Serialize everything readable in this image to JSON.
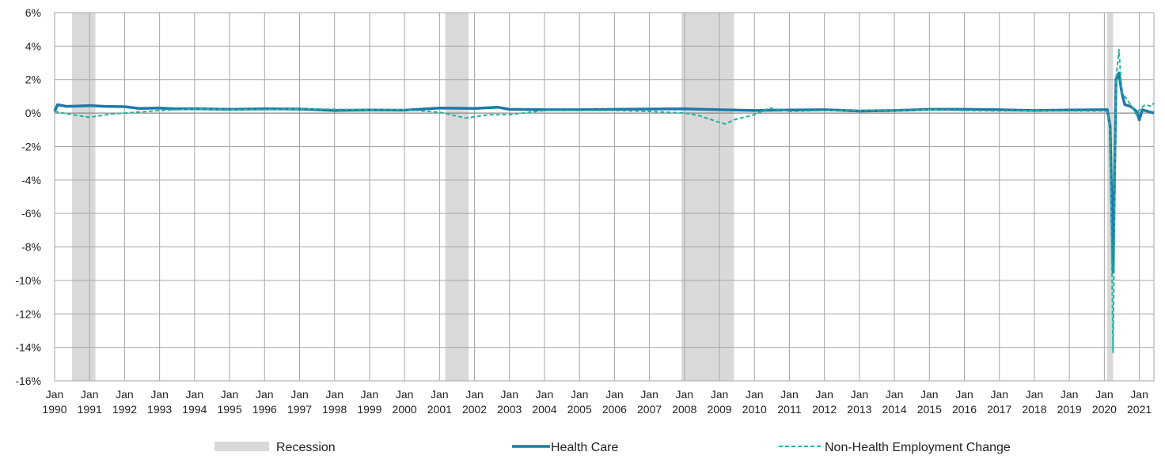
{
  "chart_data": {
    "type": "line",
    "title": "",
    "xlabel": "",
    "ylabel": "",
    "ylim": [
      -16,
      6
    ],
    "y_unit": "%",
    "y_ticks": [
      6,
      4,
      2,
      0,
      -2,
      -4,
      -6,
      -8,
      -10,
      -12,
      -14,
      -16
    ],
    "y_tick_labels": [
      "6%",
      "4%",
      "2%",
      "0%",
      "-2%",
      "-4%",
      "-6%",
      "-8%",
      "-10%",
      "-12%",
      "-14%",
      "-16%"
    ],
    "x_range": [
      "1990-01",
      "2021-06"
    ],
    "x_ticks": [
      {
        "month": "Jan",
        "year": "1990"
      },
      {
        "month": "Jan",
        "year": "1991"
      },
      {
        "month": "Jan",
        "year": "1992"
      },
      {
        "month": "Jan",
        "year": "1993"
      },
      {
        "month": "Jan",
        "year": "1994"
      },
      {
        "month": "Jan",
        "year": "1995"
      },
      {
        "month": "Jan",
        "year": "1996"
      },
      {
        "month": "Jan",
        "year": "1997"
      },
      {
        "month": "Jan",
        "year": "1998"
      },
      {
        "month": "Jan",
        "year": "1999"
      },
      {
        "month": "Jan",
        "year": "2000"
      },
      {
        "month": "Jan",
        "year": "2001"
      },
      {
        "month": "Jan",
        "year": "2002"
      },
      {
        "month": "Jan",
        "year": "2003"
      },
      {
        "month": "Jan",
        "year": "2004"
      },
      {
        "month": "Jan",
        "year": "2005"
      },
      {
        "month": "Jan",
        "year": "2006"
      },
      {
        "month": "Jan",
        "year": "2007"
      },
      {
        "month": "Jan",
        "year": "2008"
      },
      {
        "month": "Jan",
        "year": "2009"
      },
      {
        "month": "Jan",
        "year": "2010"
      },
      {
        "month": "Jan",
        "year": "2011"
      },
      {
        "month": "Jan",
        "year": "2012"
      },
      {
        "month": "Jan",
        "year": "2013"
      },
      {
        "month": "Jan",
        "year": "2014"
      },
      {
        "month": "Jan",
        "year": "2015"
      },
      {
        "month": "Jan",
        "year": "2016"
      },
      {
        "month": "Jan",
        "year": "2017"
      },
      {
        "month": "Jan",
        "year": "2018"
      },
      {
        "month": "Jan",
        "year": "2019"
      },
      {
        "month": "Jan",
        "year": "2020"
      },
      {
        "month": "Jan",
        "year": "2021"
      }
    ],
    "grid": true,
    "legend_position": "bottom",
    "recessions": [
      {
        "start": "1990-07",
        "end": "1991-03"
      },
      {
        "start": "2001-03",
        "end": "2001-11"
      },
      {
        "start": "2007-12",
        "end": "2009-06"
      },
      {
        "start": "2020-02",
        "end": "2020-04"
      }
    ],
    "legend": [
      {
        "label": "Recession",
        "kind": "band",
        "color": "#d9d9d9"
      },
      {
        "label": "Health Care",
        "kind": "line",
        "color": "#1f78a8"
      },
      {
        "label": "Non-Health Employment Change",
        "kind": "dashed",
        "color": "#23b39b"
      }
    ],
    "series": [
      {
        "name": "Health Care",
        "color": "#1f78a8",
        "style": "solid",
        "points": [
          [
            "1990-01",
            0.1
          ],
          [
            "1990-02",
            0.5
          ],
          [
            "1990-05",
            0.4
          ],
          [
            "1990-09",
            0.42
          ],
          [
            "1991-01",
            0.45
          ],
          [
            "1991-06",
            0.4
          ],
          [
            "1992-01",
            0.38
          ],
          [
            "1992-06",
            0.28
          ],
          [
            "1993-01",
            0.3
          ],
          [
            "1993-06",
            0.25
          ],
          [
            "1994-01",
            0.26
          ],
          [
            "1995-01",
            0.22
          ],
          [
            "1996-01",
            0.25
          ],
          [
            "1997-01",
            0.24
          ],
          [
            "1998-01",
            0.15
          ],
          [
            "1999-01",
            0.18
          ],
          [
            "2000-01",
            0.17
          ],
          [
            "2001-01",
            0.3
          ],
          [
            "2002-01",
            0.28
          ],
          [
            "2002-09",
            0.35
          ],
          [
            "2003-01",
            0.22
          ],
          [
            "2004-01",
            0.2
          ],
          [
            "2005-01",
            0.2
          ],
          [
            "2006-01",
            0.22
          ],
          [
            "2007-01",
            0.24
          ],
          [
            "2008-01",
            0.25
          ],
          [
            "2009-01",
            0.2
          ],
          [
            "2010-01",
            0.15
          ],
          [
            "2011-01",
            0.18
          ],
          [
            "2012-01",
            0.2
          ],
          [
            "2013-01",
            0.12
          ],
          [
            "2014-01",
            0.15
          ],
          [
            "2015-01",
            0.22
          ],
          [
            "2016-01",
            0.22
          ],
          [
            "2017-01",
            0.2
          ],
          [
            "2018-01",
            0.15
          ],
          [
            "2019-01",
            0.18
          ],
          [
            "2020-01",
            0.2
          ],
          [
            "2020-02",
            0.2
          ],
          [
            "2020-03",
            -0.8
          ],
          [
            "2020-04",
            -9.5
          ],
          [
            "2020-05",
            2.0
          ],
          [
            "2020-06",
            2.4
          ],
          [
            "2020-07",
            1.2
          ],
          [
            "2020-08",
            0.5
          ],
          [
            "2020-10",
            0.4
          ],
          [
            "2020-12",
            0.1
          ],
          [
            "2021-01",
            -0.4
          ],
          [
            "2021-02",
            0.2
          ],
          [
            "2021-04",
            0.1
          ],
          [
            "2021-06",
            0.0
          ]
        ]
      },
      {
        "name": "Non-Health Employment Change",
        "color": "#23b39b",
        "style": "dashed",
        "points": [
          [
            "1990-01",
            0.1
          ],
          [
            "1990-07",
            -0.1
          ],
          [
            "1991-01",
            -0.25
          ],
          [
            "1991-03",
            -0.2
          ],
          [
            "1991-09",
            -0.05
          ],
          [
            "1992-01",
            0.0
          ],
          [
            "1993-01",
            0.15
          ],
          [
            "1994-01",
            0.25
          ],
          [
            "1995-01",
            0.2
          ],
          [
            "1996-01",
            0.2
          ],
          [
            "1997-01",
            0.25
          ],
          [
            "1998-01",
            0.22
          ],
          [
            "1999-01",
            0.2
          ],
          [
            "2000-01",
            0.2
          ],
          [
            "2001-01",
            0.05
          ],
          [
            "2001-10",
            -0.3
          ],
          [
            "2002-06",
            -0.1
          ],
          [
            "2003-01",
            -0.1
          ],
          [
            "2004-01",
            0.15
          ],
          [
            "2005-01",
            0.15
          ],
          [
            "2006-01",
            0.15
          ],
          [
            "2007-01",
            0.1
          ],
          [
            "2008-01",
            0.0
          ],
          [
            "2008-06",
            -0.15
          ],
          [
            "2008-12",
            -0.5
          ],
          [
            "2009-03",
            -0.65
          ],
          [
            "2009-06",
            -0.4
          ],
          [
            "2010-01",
            -0.1
          ],
          [
            "2010-06",
            0.3
          ],
          [
            "2011-01",
            0.1
          ],
          [
            "2012-01",
            0.15
          ],
          [
            "2013-01",
            0.15
          ],
          [
            "2014-01",
            0.15
          ],
          [
            "2015-01",
            0.2
          ],
          [
            "2016-01",
            0.15
          ],
          [
            "2017-01",
            0.12
          ],
          [
            "2018-01",
            0.15
          ],
          [
            "2019-01",
            0.12
          ],
          [
            "2020-01",
            0.12
          ],
          [
            "2020-02",
            0.1
          ],
          [
            "2020-03",
            -1.0
          ],
          [
            "2020-04",
            -14.3
          ],
          [
            "2020-05",
            2.0
          ],
          [
            "2020-06",
            3.8
          ],
          [
            "2020-07",
            1.2
          ],
          [
            "2020-08",
            1.0
          ],
          [
            "2020-10",
            0.5
          ],
          [
            "2020-12",
            -0.1
          ],
          [
            "2021-01",
            0.2
          ],
          [
            "2021-03",
            0.5
          ],
          [
            "2021-05",
            0.4
          ],
          [
            "2021-06",
            0.6
          ]
        ]
      }
    ]
  }
}
